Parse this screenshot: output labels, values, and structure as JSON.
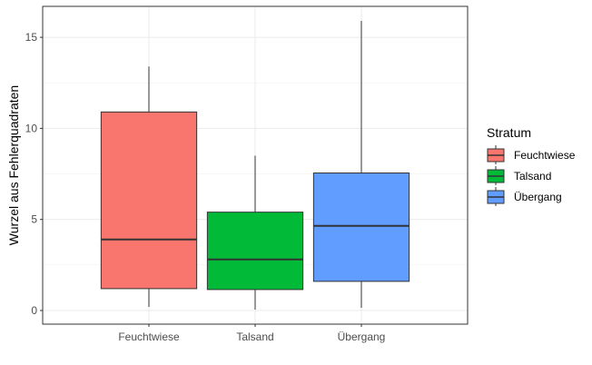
{
  "chart_data": {
    "type": "boxplot",
    "xlabel": "",
    "ylabel": "Wurzel aus Fehlerquadraten",
    "ylim": [
      -0.75,
      16.7
    ],
    "yticks": [
      0,
      5,
      10,
      15
    ],
    "grid": true,
    "legend": {
      "title": "Stratum",
      "position": "right"
    },
    "categories": [
      "Feuchtwiese",
      "Talsand",
      "Übergang"
    ],
    "series": [
      {
        "name": "Feuchtwiese",
        "color": "#F8766D",
        "min": 0.2,
        "q1": 1.2,
        "median": 3.9,
        "q3": 10.9,
        "max": 13.4
      },
      {
        "name": "Talsand",
        "color": "#00BA38",
        "min": 0.05,
        "q1": 1.15,
        "median": 2.8,
        "q3": 5.4,
        "max": 8.5
      },
      {
        "name": "Übergang",
        "color": "#619CFF",
        "min": 0.15,
        "q1": 1.6,
        "median": 4.65,
        "q3": 7.55,
        "max": 15.9
      }
    ]
  }
}
